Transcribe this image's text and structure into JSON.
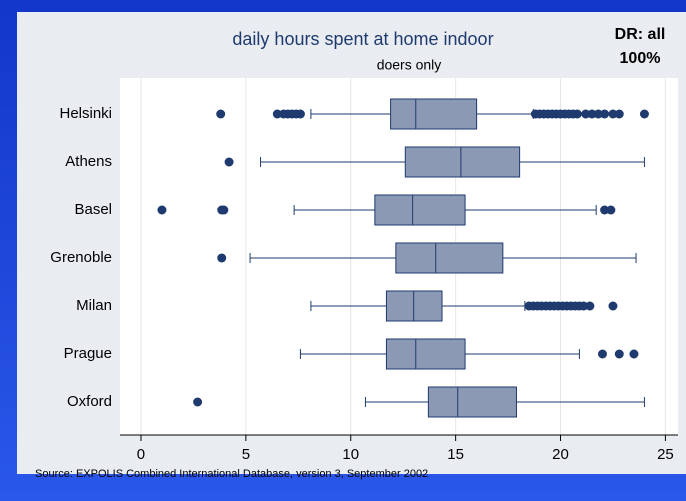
{
  "chart_data": {
    "type": "box",
    "title": "daily hours spent at home indoor",
    "subtitle": "doers only",
    "annotation": [
      "DR: all",
      "100%"
    ],
    "source": "Source: EXPOLIS Combined International Database, version 3, September 2002",
    "categories": [
      "Helsinki",
      "Athens",
      "Basel",
      "Grenoble",
      "Milan",
      "Prague",
      "Oxford"
    ],
    "boxes": [
      {
        "whisker_low": 8.1,
        "q1": 11.9,
        "median": 13.1,
        "q3": 16.0,
        "whisker_high": 18.7,
        "outliers": [
          3.8,
          6.5,
          6.8,
          7.0,
          7.2,
          7.4,
          7.6,
          18.8,
          19.0,
          19.2,
          19.4,
          19.6,
          19.8,
          20.0,
          20.2,
          20.4,
          20.6,
          20.8,
          21.2,
          21.5,
          21.8,
          22.1,
          22.5,
          22.8,
          24.0
        ]
      },
      {
        "whisker_low": 5.7,
        "q1": 12.6,
        "median": 15.25,
        "q3": 18.05,
        "whisker_high": 24.0,
        "outliers": [
          4.2
        ]
      },
      {
        "whisker_low": 7.3,
        "q1": 11.15,
        "median": 12.95,
        "q3": 15.45,
        "whisker_high": 21.7,
        "outliers": [
          1.0,
          3.85,
          3.95,
          22.1,
          22.4
        ]
      },
      {
        "whisker_low": 5.2,
        "q1": 12.15,
        "median": 14.05,
        "q3": 17.25,
        "whisker_high": 23.6,
        "outliers": [
          3.85
        ]
      },
      {
        "whisker_low": 8.1,
        "q1": 11.7,
        "median": 13.0,
        "q3": 14.35,
        "whisker_high": 18.3,
        "outliers": [
          18.5,
          18.7,
          18.9,
          19.1,
          19.3,
          19.5,
          19.7,
          19.9,
          20.1,
          20.3,
          20.5,
          20.7,
          20.9,
          21.1,
          21.4,
          22.5
        ]
      },
      {
        "whisker_low": 7.6,
        "q1": 11.7,
        "median": 13.1,
        "q3": 15.45,
        "whisker_high": 20.9,
        "outliers": [
          22.0,
          22.8,
          23.5
        ]
      },
      {
        "whisker_low": 10.7,
        "q1": 13.7,
        "median": 15.1,
        "q3": 17.9,
        "whisker_high": 24.0,
        "outliers": [
          2.7
        ]
      }
    ],
    "box_color": "#8c99b4",
    "line_color": "#1f3a6e",
    "xlim": [
      -1,
      25.6
    ],
    "xticks": [
      0,
      5,
      10,
      15,
      20,
      25
    ],
    "grid": true
  }
}
